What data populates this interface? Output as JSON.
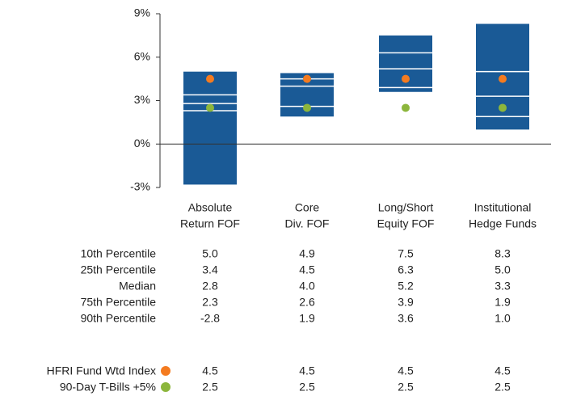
{
  "chart_data": {
    "type": "percentile-box",
    "categories": [
      [
        "Absolute",
        "Return FOF"
      ],
      [
        "Core",
        "Div. FOF"
      ],
      [
        "Long/Short",
        "Equity FOF"
      ],
      [
        "Institutional",
        "Hedge Funds"
      ]
    ],
    "ylim": [
      -3,
      9
    ],
    "yticks": [
      {
        "value": -3,
        "label": "-3%"
      },
      {
        "value": 0,
        "label": "0%"
      },
      {
        "value": 3,
        "label": "3%"
      },
      {
        "value": 6,
        "label": "6%"
      },
      {
        "value": 9,
        "label": "9%"
      }
    ],
    "box_color": "#1a5a96",
    "series": [
      {
        "name": "10th Percentile",
        "values": [
          5.0,
          4.9,
          7.5,
          8.3
        ],
        "value_labels": [
          "5.0",
          "4.9",
          "7.5",
          "8.3"
        ]
      },
      {
        "name": "25th Percentile",
        "values": [
          3.4,
          4.5,
          6.3,
          5.0
        ],
        "value_labels": [
          "3.4",
          "4.5",
          "6.3",
          "5.0"
        ]
      },
      {
        "name": "Median",
        "values": [
          2.8,
          4.0,
          5.2,
          3.3
        ],
        "value_labels": [
          "2.8",
          "4.0",
          "5.2",
          "3.3"
        ]
      },
      {
        "name": "75th Percentile",
        "values": [
          2.3,
          2.6,
          3.9,
          1.9
        ],
        "value_labels": [
          "2.3",
          "2.6",
          "3.9",
          "1.9"
        ]
      },
      {
        "name": "90th Percentile",
        "values": [
          -2.8,
          1.9,
          3.6,
          1.0
        ],
        "value_labels": [
          "-2.8",
          "1.9",
          "3.6",
          "1.0"
        ]
      }
    ],
    "markers": [
      {
        "name": "HFRI Fund Wtd Index",
        "color": "#f47b20",
        "values": [
          4.5,
          4.5,
          4.5,
          4.5
        ],
        "value_labels": [
          "4.5",
          "4.5",
          "4.5",
          "4.5"
        ]
      },
      {
        "name": "90-Day T-Bills +5%",
        "color": "#8cb63c",
        "values": [
          2.5,
          2.5,
          2.5,
          2.5
        ],
        "value_labels": [
          "2.5",
          "2.5",
          "2.5",
          "2.5"
        ]
      }
    ]
  }
}
